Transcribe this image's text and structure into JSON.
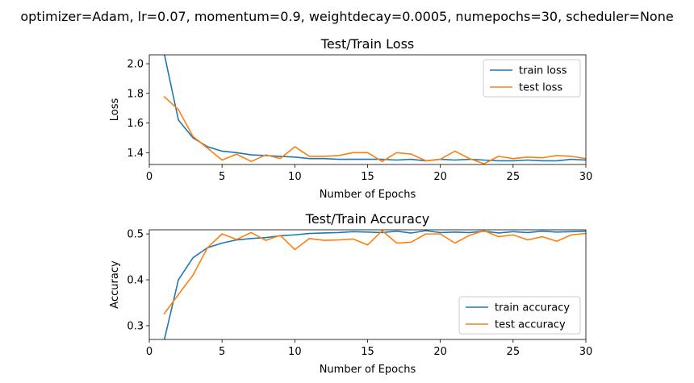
{
  "suptitle": "optimizer=Adam, lr=0.07, momentum=0.9, weightdecay=0.0005, numepochs=30, scheduler=None",
  "chart_data": [
    {
      "type": "line",
      "title": "Test/Train Loss",
      "xlabel": "Number of Epochs",
      "ylabel": "Loss",
      "xlim": [
        0,
        30
      ],
      "ylim": [
        1.32,
        2.06
      ],
      "xticks": [
        "0",
        "5",
        "10",
        "15",
        "20",
        "25",
        "30"
      ],
      "yticks": [
        "1.4",
        "1.6",
        "1.8",
        "2.0"
      ],
      "legend_position": "top-right",
      "x": [
        1,
        2,
        3,
        4,
        5,
        6,
        7,
        8,
        9,
        10,
        11,
        12,
        13,
        14,
        15,
        16,
        17,
        18,
        19,
        20,
        21,
        22,
        23,
        24,
        25,
        26,
        27,
        28,
        29,
        30
      ],
      "series": [
        {
          "name": "train loss",
          "color": "#1f77b4",
          "values": [
            2.08,
            1.62,
            1.5,
            1.44,
            1.41,
            1.4,
            1.385,
            1.38,
            1.375,
            1.37,
            1.36,
            1.36,
            1.355,
            1.355,
            1.355,
            1.355,
            1.35,
            1.355,
            1.345,
            1.355,
            1.35,
            1.355,
            1.35,
            1.345,
            1.345,
            1.35,
            1.345,
            1.345,
            1.355,
            1.35
          ]
        },
        {
          "name": "test loss",
          "color": "#ff7f0e",
          "values": [
            1.78,
            1.69,
            1.51,
            1.43,
            1.35,
            1.39,
            1.34,
            1.385,
            1.36,
            1.44,
            1.375,
            1.375,
            1.38,
            1.4,
            1.4,
            1.34,
            1.4,
            1.39,
            1.345,
            1.355,
            1.41,
            1.36,
            1.325,
            1.375,
            1.36,
            1.37,
            1.365,
            1.38,
            1.375,
            1.36
          ]
        }
      ]
    },
    {
      "type": "line",
      "title": "Test/Train Accuracy",
      "xlabel": "Number of Epochs",
      "ylabel": "Accuracy",
      "xlim": [
        0,
        30
      ],
      "ylim": [
        0.27,
        0.509
      ],
      "xticks": [
        "0",
        "5",
        "10",
        "15",
        "20",
        "25",
        "30"
      ],
      "yticks": [
        "0.3",
        "0.4",
        "0.5"
      ],
      "legend_position": "lower-right",
      "x": [
        1,
        2,
        3,
        4,
        5,
        6,
        7,
        8,
        9,
        10,
        11,
        12,
        13,
        14,
        15,
        16,
        17,
        18,
        19,
        20,
        21,
        22,
        23,
        24,
        25,
        26,
        27,
        28,
        29,
        30
      ],
      "series": [
        {
          "name": "train accuracy",
          "color": "#1f77b4",
          "values": [
            0.265,
            0.4,
            0.448,
            0.47,
            0.48,
            0.487,
            0.49,
            0.492,
            0.496,
            0.498,
            0.501,
            0.502,
            0.503,
            0.505,
            0.504,
            0.503,
            0.506,
            0.502,
            0.507,
            0.503,
            0.504,
            0.503,
            0.506,
            0.502,
            0.505,
            0.503,
            0.506,
            0.504,
            0.505,
            0.506
          ]
        },
        {
          "name": "test accuracy",
          "color": "#ff7f0e",
          "values": [
            0.325,
            0.368,
            0.41,
            0.47,
            0.5,
            0.488,
            0.503,
            0.486,
            0.497,
            0.466,
            0.49,
            0.486,
            0.487,
            0.489,
            0.476,
            0.507,
            0.48,
            0.482,
            0.5,
            0.5,
            0.48,
            0.497,
            0.507,
            0.494,
            0.498,
            0.487,
            0.494,
            0.484,
            0.498,
            0.501
          ]
        }
      ]
    }
  ]
}
